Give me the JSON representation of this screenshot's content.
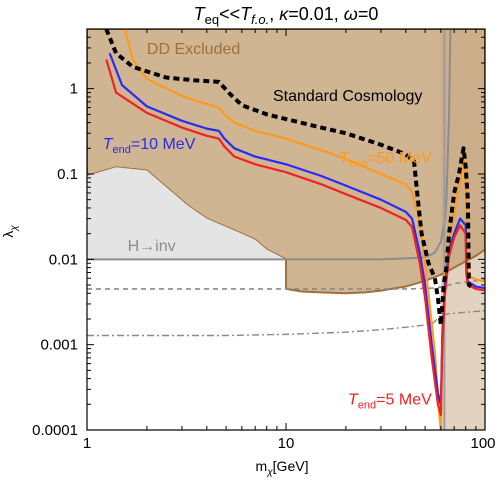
{
  "chart_data": {
    "type": "line",
    "title": {
      "parts": [
        {
          "text": "T",
          "style": "italic"
        },
        {
          "text": "eq",
          "style": "sub"
        },
        {
          "text": "<<",
          "style": "normal"
        },
        {
          "text": "T",
          "style": "italic"
        },
        {
          "text": "f.o.",
          "style": "sub-italic"
        },
        {
          "text": ", ",
          "style": "normal"
        },
        {
          "text": "κ",
          "style": "italic"
        },
        {
          "text": "=0.01, ",
          "style": "normal"
        },
        {
          "text": "ω",
          "style": "italic"
        },
        {
          "text": "=0",
          "style": "normal"
        }
      ]
    },
    "xlabel": {
      "main": "m",
      "sub": "χ",
      "tail": "[GeV]"
    },
    "ylabel": {
      "main": "λ",
      "sub": "χ"
    },
    "x_scale": "log",
    "y_scale": "log",
    "xlim": [
      1,
      100
    ],
    "ylim": [
      0.0001,
      5
    ],
    "x_ticks": [
      {
        "v": 1,
        "label": "1"
      },
      {
        "v": 10,
        "label": "10"
      },
      {
        "v": 100,
        "label": "100"
      }
    ],
    "y_ticks": [
      {
        "v": 0.0001,
        "label": "0.0001"
      },
      {
        "v": 0.001,
        "label": "0.001"
      },
      {
        "v": 0.01,
        "label": "0.01"
      },
      {
        "v": 0.1,
        "label": "0.1"
      },
      {
        "v": 1,
        "label": "1"
      }
    ],
    "grid": false,
    "colors": {
      "dd_fill": "#c8a880",
      "dd_edge": "#a0703a",
      "region_fill": "#e3d2bf",
      "hinv_fill": "#e4e4e4",
      "hinv_line": "#8c8c8c",
      "t10": "#2a2af0",
      "t50": "#ff9a1e",
      "t5": "#f02222",
      "standard": "#000000",
      "dashed_gray": "#8a8a8a",
      "vertical_gray": "#9c9c9c"
    },
    "regions": [
      {
        "name": "dd-excluded",
        "points": [
          [
            1,
            5
          ],
          [
            1,
            0.095
          ],
          [
            1.4,
            0.12
          ],
          [
            2.0,
            0.11
          ],
          [
            2.6,
            0.065
          ],
          [
            3.2,
            0.043
          ],
          [
            4.0,
            0.03
          ],
          [
            5,
            0.024
          ],
          [
            6,
            0.02
          ],
          [
            7,
            0.017
          ],
          [
            8,
            0.013
          ],
          [
            10,
            0.01
          ],
          [
            10,
            0.0045
          ],
          [
            12,
            0.0042
          ],
          [
            15,
            0.0041
          ],
          [
            20,
            0.004
          ],
          [
            25,
            0.0041
          ],
          [
            30,
            0.0043
          ],
          [
            40,
            0.0048
          ],
          [
            50,
            0.0056
          ],
          [
            60,
            0.0066
          ],
          [
            70,
            0.008
          ],
          [
            80,
            0.0095
          ],
          [
            90,
            0.011
          ],
          [
            100,
            0.013
          ],
          [
            100,
            5
          ]
        ]
      },
      {
        "name": "right-band",
        "points": [
          [
            60,
            5
          ],
          [
            60,
            0.0001
          ],
          [
            100,
            0.0001
          ],
          [
            100,
            5
          ]
        ]
      },
      {
        "name": "h-inv-region",
        "points": [
          [
            1,
            0.01
          ],
          [
            1,
            0.095
          ],
          [
            1.4,
            0.12
          ],
          [
            2.0,
            0.11
          ],
          [
            2.6,
            0.065
          ],
          [
            3.2,
            0.043
          ],
          [
            4.0,
            0.03
          ],
          [
            5,
            0.024
          ],
          [
            6,
            0.02
          ],
          [
            7,
            0.017
          ],
          [
            8,
            0.013
          ],
          [
            10,
            0.01
          ]
        ]
      }
    ],
    "series": [
      {
        "key": "t10",
        "color_key": "t10",
        "dash": "solid",
        "width": 2.2,
        "points": [
          [
            1.3,
            2.6
          ],
          [
            1.5,
            1.1
          ],
          [
            2,
            0.62
          ],
          [
            3,
            0.42
          ],
          [
            4,
            0.34
          ],
          [
            4.6,
            0.32
          ],
          [
            4.9,
            0.26
          ],
          [
            5.5,
            0.2
          ],
          [
            7,
            0.16
          ],
          [
            10,
            0.13
          ],
          [
            15,
            0.095
          ],
          [
            20,
            0.073
          ],
          [
            30,
            0.05
          ],
          [
            40,
            0.036
          ],
          [
            43,
            0.03
          ],
          [
            47,
            0.012
          ],
          [
            50,
            0.005
          ],
          [
            54,
            0.001
          ],
          [
            58,
            0.00027
          ],
          [
            60,
            0.0002
          ],
          [
            61,
            0.0012
          ],
          [
            63,
            0.005
          ],
          [
            66,
            0.013
          ],
          [
            70,
            0.02
          ],
          [
            75,
            0.03
          ],
          [
            80,
            0.025
          ],
          [
            80.5,
            0.008
          ],
          [
            82,
            0.0055
          ],
          [
            90,
            0.0048
          ],
          [
            100,
            0.0046
          ]
        ]
      },
      {
        "key": "t50",
        "color_key": "t50",
        "dash": "solid",
        "width": 2.2,
        "points": [
          [
            1.55,
            5
          ],
          [
            1.7,
            2.2
          ],
          [
            2,
            1.3
          ],
          [
            3,
            0.82
          ],
          [
            4,
            0.66
          ],
          [
            4.6,
            0.6
          ],
          [
            4.9,
            0.5
          ],
          [
            5.5,
            0.4
          ],
          [
            7,
            0.32
          ],
          [
            10,
            0.26
          ],
          [
            15,
            0.19
          ],
          [
            20,
            0.15
          ],
          [
            30,
            0.1
          ],
          [
            40,
            0.076
          ],
          [
            43,
            0.062
          ],
          [
            47,
            0.028
          ],
          [
            52,
            0.004
          ],
          [
            56,
            0.0008
          ],
          [
            59,
            0.00015
          ],
          [
            60,
            0.0001
          ],
          [
            61,
            0.0012
          ],
          [
            63,
            0.006
          ],
          [
            66,
            0.016
          ],
          [
            70,
            0.035
          ],
          [
            75,
            0.08
          ],
          [
            78,
            0.15
          ],
          [
            80,
            0.12
          ],
          [
            80.5,
            0.01
          ],
          [
            82,
            0.0065
          ],
          [
            90,
            0.0058
          ],
          [
            100,
            0.0055
          ]
        ]
      },
      {
        "key": "t5",
        "color_key": "t5",
        "dash": "solid",
        "width": 2.2,
        "points": [
          [
            1.25,
            2.2
          ],
          [
            1.4,
            0.9
          ],
          [
            2,
            0.52
          ],
          [
            3,
            0.35
          ],
          [
            4,
            0.28
          ],
          [
            4.6,
            0.26
          ],
          [
            4.9,
            0.21
          ],
          [
            5.5,
            0.16
          ],
          [
            7,
            0.13
          ],
          [
            10,
            0.105
          ],
          [
            15,
            0.076
          ],
          [
            20,
            0.058
          ],
          [
            30,
            0.04
          ],
          [
            40,
            0.029
          ],
          [
            43,
            0.024
          ],
          [
            47,
            0.009
          ],
          [
            50,
            0.0035
          ],
          [
            54,
            0.0007
          ],
          [
            58,
            0.0002
          ],
          [
            60,
            0.00015
          ],
          [
            61,
            0.001
          ],
          [
            63,
            0.004
          ],
          [
            66,
            0.011
          ],
          [
            70,
            0.018
          ],
          [
            75,
            0.025
          ],
          [
            80,
            0.02
          ],
          [
            80.5,
            0.007
          ],
          [
            82,
            0.005
          ],
          [
            90,
            0.0045
          ],
          [
            100,
            0.0043
          ]
        ]
      },
      {
        "key": "standard",
        "color_key": "standard",
        "dash": "6,4",
        "width": 4,
        "points": [
          [
            1.25,
            5
          ],
          [
            1.4,
            2.6
          ],
          [
            1.7,
            1.8
          ],
          [
            2.5,
            1.35
          ],
          [
            3.5,
            1.25
          ],
          [
            4.6,
            1.2
          ],
          [
            5.2,
            0.88
          ],
          [
            6,
            0.64
          ],
          [
            8,
            0.5
          ],
          [
            10,
            0.44
          ],
          [
            15,
            0.35
          ],
          [
            20,
            0.3
          ],
          [
            30,
            0.22
          ],
          [
            40,
            0.17
          ],
          [
            44,
            0.14
          ],
          [
            46,
            0.05
          ],
          [
            48,
            0.02
          ],
          [
            52,
            0.009
          ],
          [
            56,
            0.006
          ],
          [
            58,
            0.0035
          ],
          [
            60,
            0.0017
          ],
          [
            62,
            0.005
          ],
          [
            64,
            0.008
          ],
          [
            66,
            0.02
          ],
          [
            70,
            0.06
          ],
          [
            74,
            0.1
          ],
          [
            78,
            0.2
          ],
          [
            80,
            0.12
          ],
          [
            82,
            0.05
          ],
          [
            83,
            0.005
          ],
          [
            85,
            0.0048
          ]
        ]
      },
      {
        "key": "gray-dashed",
        "color_key": "dashed_gray",
        "dash": "5,4",
        "width": 1.6,
        "points": [
          [
            1,
            0.0045
          ],
          [
            10,
            0.0045
          ],
          [
            20,
            0.0045
          ],
          [
            40,
            0.0045
          ],
          [
            55,
            0.0046
          ],
          [
            62,
            0.0048
          ],
          [
            70,
            0.0052
          ],
          [
            100,
            0.0058
          ]
        ]
      },
      {
        "key": "gray-dotdash",
        "color_key": "dashed_gray",
        "dash": "7,3,2,3",
        "width": 1.4,
        "points": [
          [
            1,
            0.00128
          ],
          [
            5,
            0.00128
          ],
          [
            10,
            0.00132
          ],
          [
            20,
            0.0014
          ],
          [
            30,
            0.0015
          ],
          [
            40,
            0.0016
          ],
          [
            50,
            0.0017
          ],
          [
            55,
            0.0018
          ],
          [
            60,
            0.0022
          ],
          [
            65,
            0.0023
          ],
          [
            100,
            0.0025
          ]
        ]
      },
      {
        "key": "h-inv-line",
        "color_key": "hinv_line",
        "dash": "solid",
        "width": 2,
        "points": [
          [
            1,
            0.01
          ],
          [
            10,
            0.01
          ],
          [
            30,
            0.01
          ],
          [
            50,
            0.0105
          ],
          [
            56,
            0.012
          ],
          [
            60,
            0.016
          ],
          [
            63,
            0.03
          ],
          [
            64,
            0.05
          ],
          [
            66,
            0.5
          ],
          [
            67,
            5
          ]
        ]
      },
      {
        "key": "vertical-gray",
        "color_key": "vertical_gray",
        "dash": "solid",
        "width": 2,
        "points": [
          [
            62.5,
            5
          ],
          [
            62.5,
            0.0001
          ]
        ]
      }
    ],
    "annotations": [
      {
        "key": "dd-excluded",
        "text": "DD Excluded",
        "color": "#a0703a",
        "at": [
          2.0,
          2.55
        ],
        "anchor": "start"
      },
      {
        "key": "standard-cosmology",
        "text": "Standard Cosmology",
        "color": "#000000",
        "at": [
          8.6,
          0.72
        ],
        "anchor": "start"
      },
      {
        "key": "t10",
        "parts": [
          {
            "text": "T",
            "style": "italic"
          },
          {
            "text": "end",
            "style": "sub"
          },
          {
            "text": "=10 MeV",
            "style": "normal"
          }
        ],
        "color": "#2a2af0",
        "at": [
          1.2,
          0.195
        ],
        "anchor": "start"
      },
      {
        "key": "t50",
        "parts": [
          {
            "text": "T",
            "style": "italic"
          },
          {
            "text": "end",
            "style": "sub"
          },
          {
            "text": "=50 MeV",
            "style": "normal"
          }
        ],
        "color": "#ff9a1e",
        "at": [
          18.5,
          0.135
        ],
        "anchor": "start"
      },
      {
        "key": "t5",
        "parts": [
          {
            "text": "T",
            "style": "italic"
          },
          {
            "text": "end",
            "style": "sub"
          },
          {
            "text": "=5 MeV",
            "style": "normal"
          }
        ],
        "color": "#f02222",
        "at": [
          20.5,
          0.0002
        ],
        "anchor": "start"
      },
      {
        "key": "h-inv",
        "text": "H→inv",
        "color": "#8c8c8c",
        "at": [
          1.6,
          0.0125
        ],
        "anchor": "start"
      }
    ]
  }
}
